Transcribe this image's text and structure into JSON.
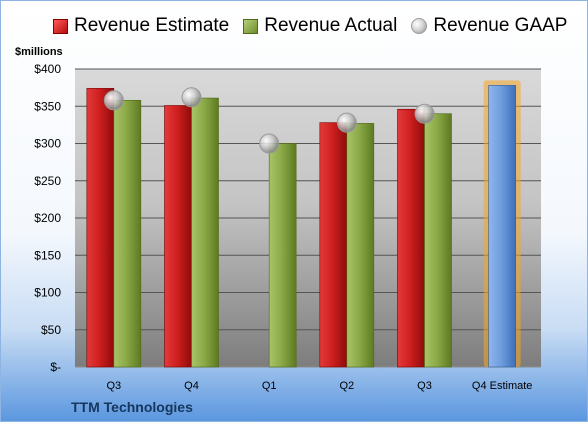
{
  "legend": {
    "estimate": "Revenue Estimate",
    "actual": "Revenue Actual",
    "gaap": "Revenue GAAP"
  },
  "unit_label": "$millions",
  "company": "TTM Technologies",
  "colors": {
    "estimate": "#cc1f1f",
    "actual": "#8caa48",
    "gaap_marker": "#bdbdbd",
    "forecast": "#6f9ee0",
    "forecast_glow": "#f5a623",
    "company_text": "#16365d"
  },
  "chart_data": {
    "type": "bar",
    "categories": [
      "Q3",
      "Q4",
      "Q1",
      "Q2",
      "Q3",
      "Q4 Estimate"
    ],
    "y_tick_labels": [
      "$-",
      "$50",
      "$100",
      "$150",
      "$200",
      "$250",
      "$300",
      "$350",
      "$400"
    ],
    "ylim": [
      0,
      400
    ],
    "grid": true,
    "legend_position": "top",
    "series": [
      {
        "name": "Revenue Estimate",
        "values": [
          374,
          351,
          null,
          328,
          346,
          378
        ]
      },
      {
        "name": "Revenue Actual",
        "values": [
          358,
          361,
          300,
          327,
          340,
          null
        ]
      },
      {
        "name": "Revenue GAAP",
        "values": [
          358,
          362,
          300,
          328,
          340,
          null
        ]
      }
    ]
  }
}
